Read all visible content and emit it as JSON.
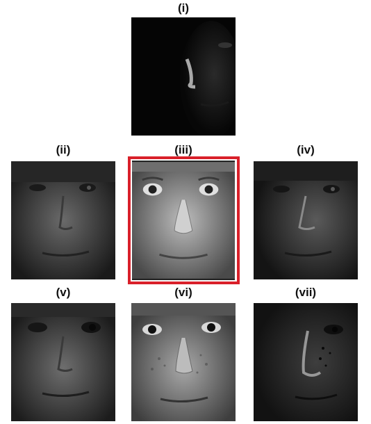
{
  "panels": [
    {
      "id": "i",
      "label": "(i)"
    },
    {
      "id": "ii",
      "label": "(ii)"
    },
    {
      "id": "iii",
      "label": "(iii)"
    },
    {
      "id": "iv",
      "label": "(iv)"
    },
    {
      "id": "v",
      "label": "(v)"
    },
    {
      "id": "vi",
      "label": "(vi)"
    },
    {
      "id": "vii",
      "label": "(vii)"
    }
  ],
  "highlight_color": "#d9202a",
  "selected_panel": "iii"
}
